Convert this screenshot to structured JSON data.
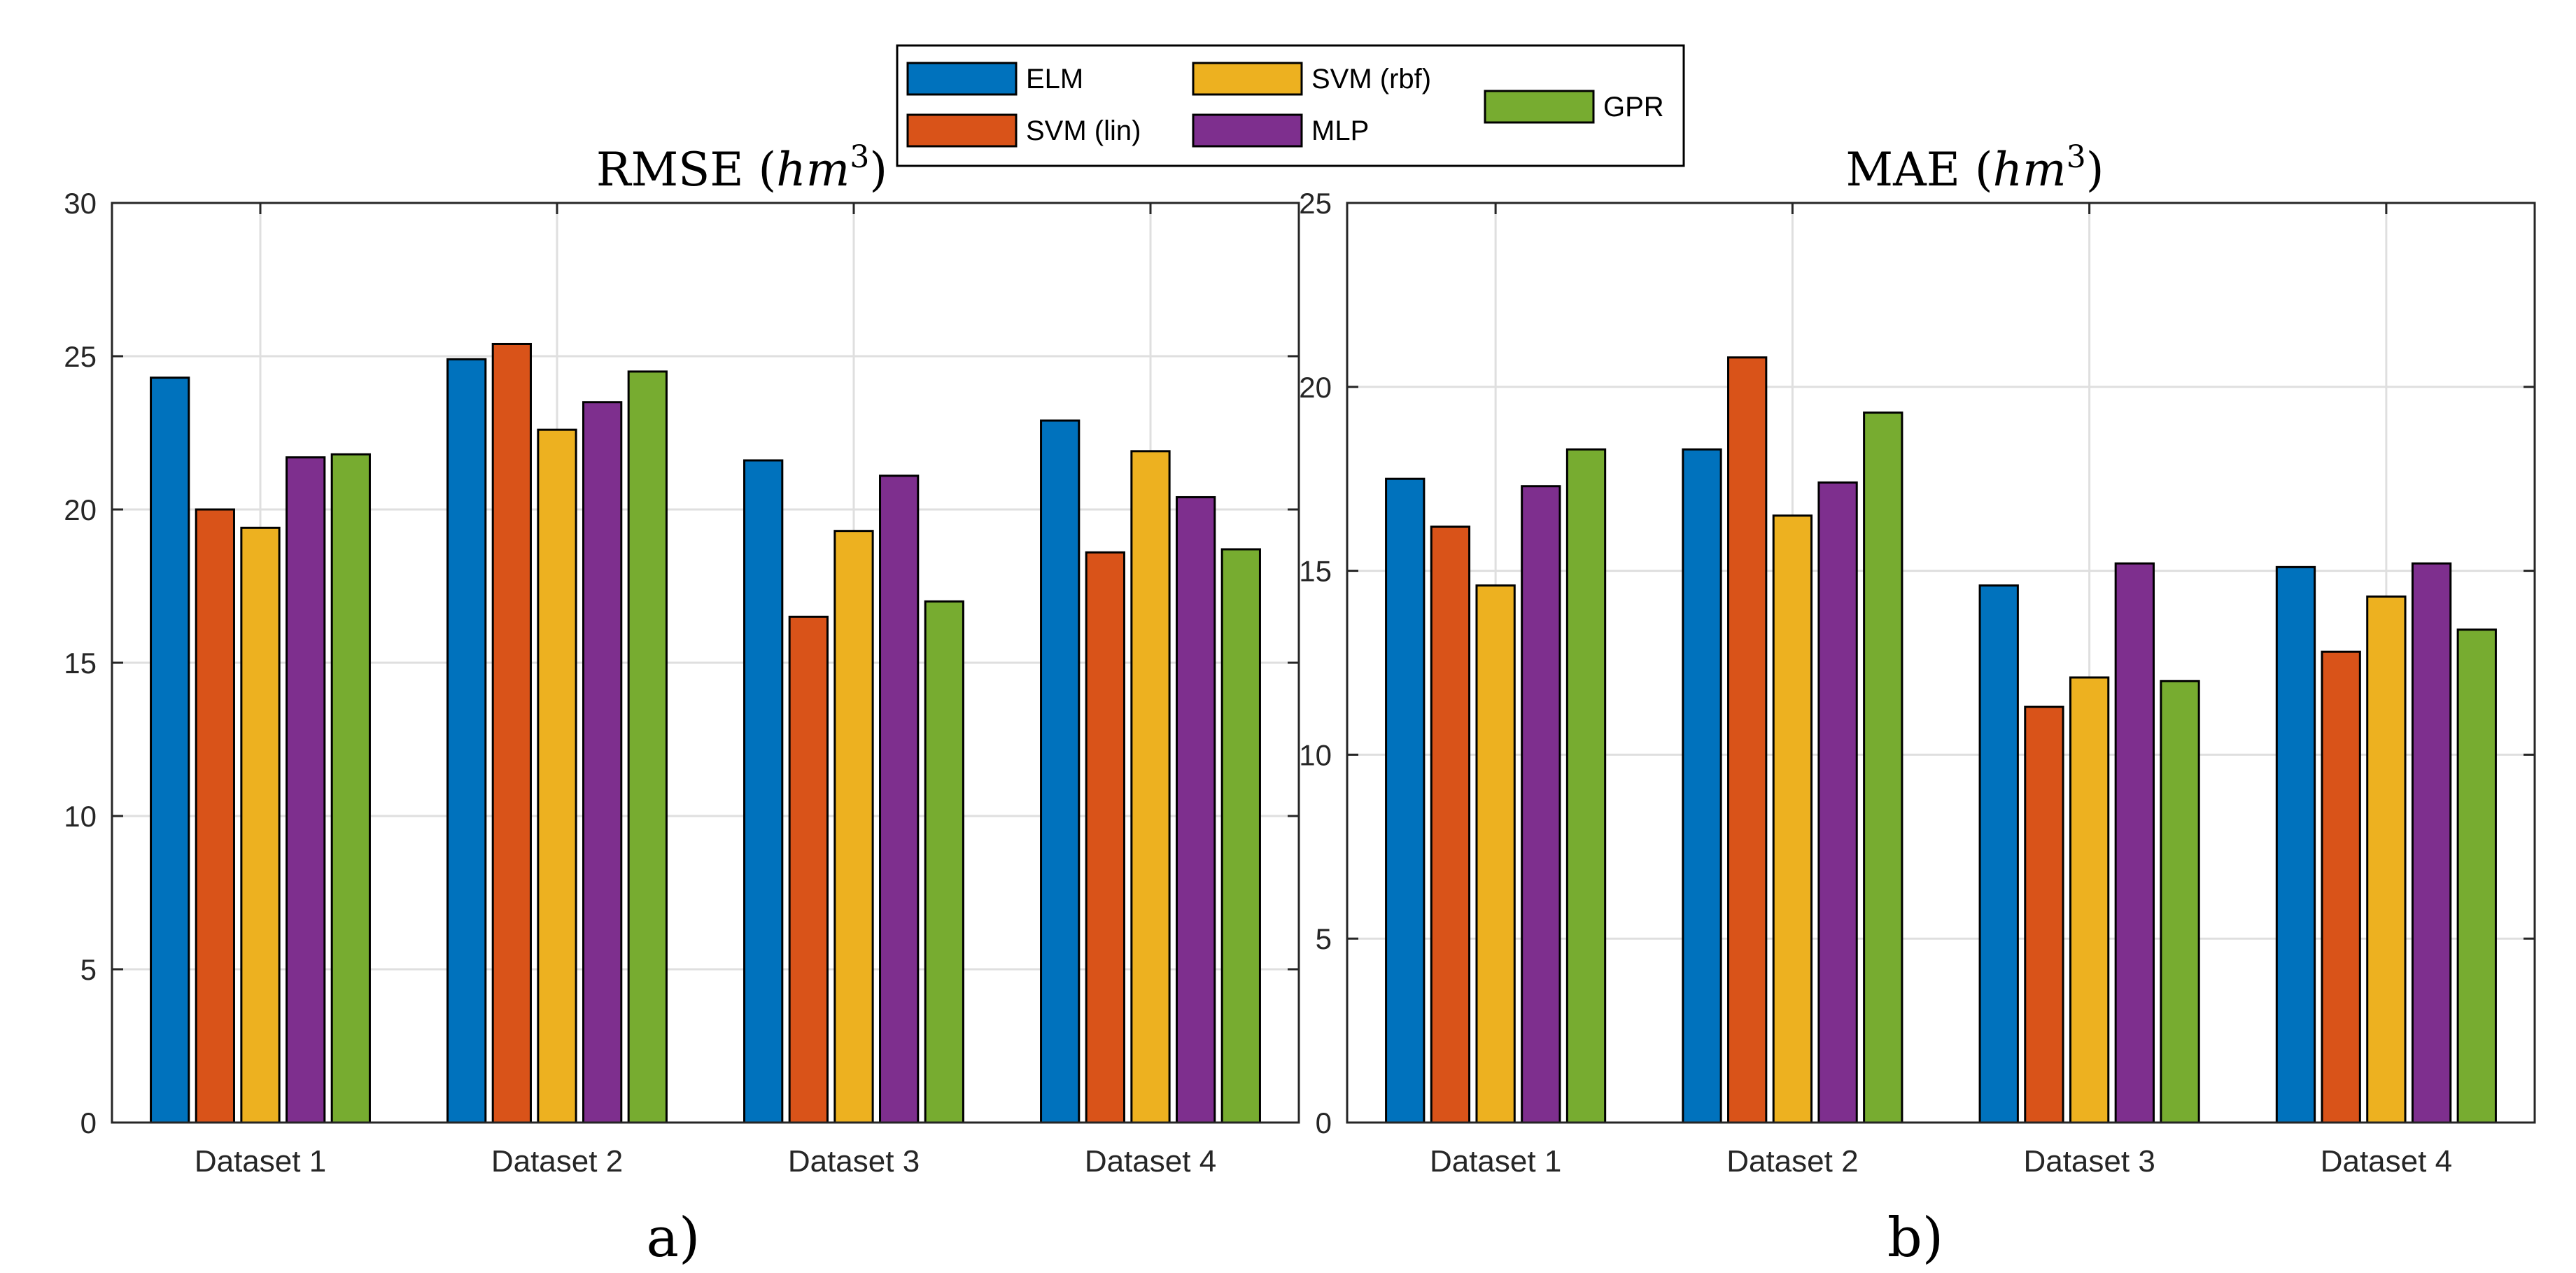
{
  "legend": [
    {
      "name": "ELM",
      "color": "#0072BD"
    },
    {
      "name": "SVM (lin)",
      "color": "#D95319"
    },
    {
      "name": "SVM (rbf)",
      "color": "#EDB120"
    },
    {
      "name": "MLP",
      "color": "#7E2F8E"
    },
    {
      "name": "GPR",
      "color": "#77AC30"
    }
  ],
  "chart_data": [
    {
      "type": "bar",
      "title": "RMSE (hm³)",
      "title_main": "RMSE (",
      "title_var": "hm",
      "title_exp": "3",
      "title_close": ")",
      "caption": "a)",
      "xlabel": "",
      "ylabel": "",
      "ylim": [
        0,
        30
      ],
      "yticks": [
        0,
        5,
        10,
        15,
        20,
        25,
        30
      ],
      "grid": true,
      "categories": [
        "Dataset 1",
        "Dataset 2",
        "Dataset 3",
        "Dataset 4"
      ],
      "series": [
        {
          "name": "ELM",
          "values": [
            24.3,
            24.9,
            21.6,
            22.9
          ]
        },
        {
          "name": "SVM (lin)",
          "values": [
            20.0,
            25.4,
            16.5,
            18.6
          ]
        },
        {
          "name": "SVM (rbf)",
          "values": [
            19.4,
            22.6,
            19.3,
            21.9
          ]
        },
        {
          "name": "MLP",
          "values": [
            21.7,
            23.5,
            21.1,
            20.4
          ]
        },
        {
          "name": "GPR",
          "values": [
            21.8,
            24.5,
            17.0,
            18.7
          ]
        }
      ]
    },
    {
      "type": "bar",
      "title": "MAE (hm³)",
      "title_main": "MAE (",
      "title_var": "hm",
      "title_exp": "3",
      "title_close": ")",
      "caption": "b)",
      "xlabel": "",
      "ylabel": "",
      "ylim": [
        0,
        25
      ],
      "yticks": [
        0,
        5,
        10,
        15,
        20,
        25
      ],
      "grid": true,
      "categories": [
        "Dataset 1",
        "Dataset 2",
        "Dataset 3",
        "Dataset 4"
      ],
      "series": [
        {
          "name": "ELM",
          "values": [
            17.5,
            18.3,
            14.6,
            15.1
          ]
        },
        {
          "name": "SVM (lin)",
          "values": [
            16.2,
            20.8,
            11.3,
            12.8
          ]
        },
        {
          "name": "SVM (rbf)",
          "values": [
            14.6,
            16.5,
            12.1,
            14.3
          ]
        },
        {
          "name": "MLP",
          "values": [
            17.3,
            17.4,
            15.2,
            15.2
          ]
        },
        {
          "name": "GPR",
          "values": [
            18.3,
            19.3,
            12.0,
            13.4
          ]
        }
      ]
    }
  ]
}
